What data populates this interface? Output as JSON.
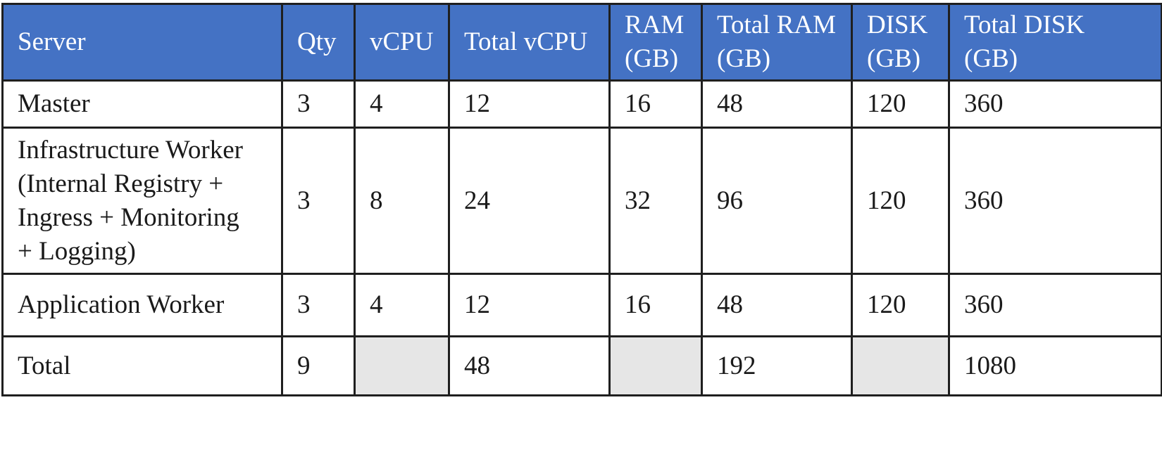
{
  "table": {
    "headers": [
      {
        "line1": "Server",
        "line2": ""
      },
      {
        "line1": "Qty",
        "line2": ""
      },
      {
        "line1": "vCPU",
        "line2": ""
      },
      {
        "line1": "Total vCPU",
        "line2": ""
      },
      {
        "line1": "RAM",
        "line2": "(GB)"
      },
      {
        "line1": "Total RAM",
        "line2": "(GB)"
      },
      {
        "line1": "DISK",
        "line2": "(GB)"
      },
      {
        "line1": "Total DISK",
        "line2": "(GB)"
      }
    ],
    "rows": [
      {
        "server_lines": [
          "Master"
        ],
        "qty": "3",
        "vcpu": "4",
        "total_vcpu": "12",
        "ram": "16",
        "total_ram": "48",
        "disk": "120",
        "total_disk": "360"
      },
      {
        "server_lines": [
          "Infrastructure Worker",
          "(Internal Registry +",
          "Ingress + Monitoring",
          "+ Logging)"
        ],
        "qty": "3",
        "vcpu": "8",
        "total_vcpu": "24",
        "ram": "32",
        "total_ram": "96",
        "disk": "120",
        "total_disk": "360"
      },
      {
        "server_lines": [
          "Application Worker"
        ],
        "qty": "3",
        "vcpu": "4",
        "total_vcpu": "12",
        "ram": "16",
        "total_ram": "48",
        "disk": "120",
        "total_disk": "360"
      }
    ],
    "total_row": {
      "label": "Total",
      "qty": "9",
      "total_vcpu": "48",
      "total_ram": "192",
      "total_disk": "1080"
    }
  },
  "colors": {
    "header_background": "#4472c4",
    "header_text": "#ffffff",
    "blank_cell": "#e6e6e6",
    "border": "#1f1f1f"
  }
}
